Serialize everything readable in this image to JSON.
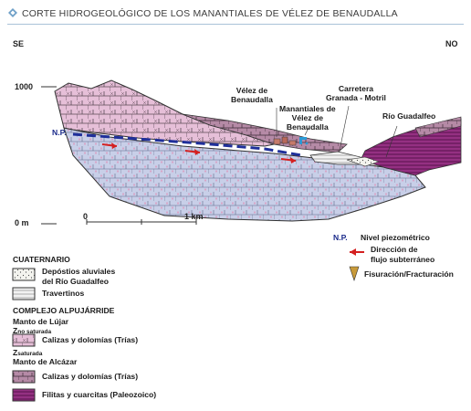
{
  "header": {
    "title": "CORTE HIDROGEOLÓGICO DE LOS MANANTIALES DE VÉLEZ DE BENAUDALLA",
    "accent_color": "#6fa0c8"
  },
  "section": {
    "left_direction": "SE",
    "right_direction": "NO",
    "elevation_top": "1000",
    "elevation_bottom": "0 m",
    "scale_start": "0",
    "scale_end": "1 km",
    "np_label": "N.P.",
    "annotations": {
      "velez_line1": "Vélez de",
      "velez_line2": "Benaudalla",
      "springs_line1": "Manantiales de",
      "springs_line2": "Vélez de",
      "springs_line3": "Benaudalla",
      "road_line1": "Carretera",
      "road_line2": "Granada - Motril",
      "river": "Río Guadalfeo"
    }
  },
  "legend": {
    "quaternary_title": "CUATERNARIO",
    "alluvial_line1": "Depóstios aluviales",
    "alluvial_line2": "del Río Guadalfeo",
    "travertines": "Travertinos",
    "alpujarride_title": "COMPLEJO ALPUJÁRRIDE",
    "lujar_title": "Manto de Lújar",
    "zns_main": "Z",
    "zns_sub": "no saturada",
    "lujar_limestone": "Calizas y dolomías (Trías)",
    "zs_main": "Z",
    "zs_sub": "saturada",
    "alcazar_title": "Manto de Alcázar",
    "alcazar_limestone": "Calizas y dolomías (Trías)",
    "phyllites": "Filitas y cuarcitas (Paleozoico)",
    "np_key": "N.P.",
    "np_text": "Nivel piezométrico",
    "flow_line1": "Dirección de",
    "flow_line2": "flujo subterráneo",
    "fracture": "Fisuración/Fracturación"
  },
  "colors": {
    "lujar_unsaturated": "#e6bfd8",
    "saturated": "#c8cfe8",
    "alcazar_limestone": "#b58aa6",
    "phyllites": "#8e2a7c",
    "water_table": "#1f2f9a",
    "flow_arrow": "#d42020"
  }
}
